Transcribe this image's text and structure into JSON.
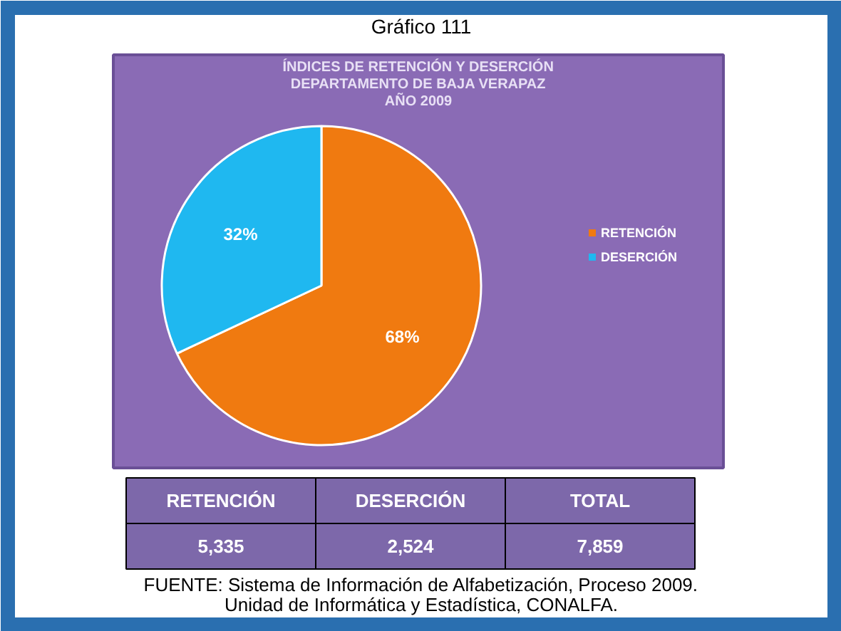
{
  "chart_data": {
    "type": "pie",
    "title": "Gráfico 111",
    "subtitle": "ÍNDICES DE RETENCIÓN Y DESERCIÓN\nDEPARTAMENTO DE BAJA VERAPAZ\nAÑO 2009",
    "categories": [
      "RETENCIÓN",
      "DESERCIÓN"
    ],
    "values": [
      68,
      32
    ],
    "colors": [
      "#f07a10",
      "#1fb8f0"
    ],
    "value_labels": [
      "68%",
      "32%"
    ],
    "legend": "right",
    "annotations": [
      "TOTAL",
      "5,335",
      "2,524",
      "7,859",
      "FUENTE: Sistema de Información de Alfabetización, Proceso 2009.",
      "Unidad de Informática y Estadística, CONALFA."
    ]
  }
}
